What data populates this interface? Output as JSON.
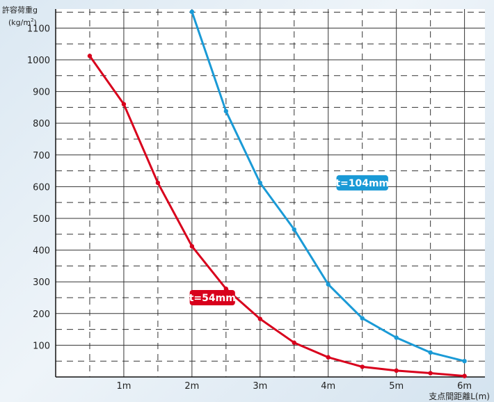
{
  "chart_data": {
    "type": "line",
    "ytitle_line1": "許容荷重g",
    "ytitle_line2": "(kg/m",
    "ytitle_sup": "2",
    "ytitle_close": ")",
    "xlabel": "支点間距離L(m)",
    "xlim": [
      0,
      6.3
    ],
    "ylim": [
      0,
      1160
    ],
    "x_ticks": [
      {
        "value": 1,
        "label": "1m"
      },
      {
        "value": 2,
        "label": "2m"
      },
      {
        "value": 3,
        "label": "3m"
      },
      {
        "value": 4,
        "label": "4m"
      },
      {
        "value": 5,
        "label": "5m"
      },
      {
        "value": 6,
        "label": "6m"
      }
    ],
    "y_ticks": [
      100,
      200,
      300,
      400,
      500,
      600,
      700,
      800,
      900,
      1000,
      1100
    ],
    "grid": true,
    "series": [
      {
        "name": "t=54mm",
        "color": "#d8001c",
        "x": [
          0.5,
          1.0,
          1.5,
          2.0,
          2.5,
          3.0,
          3.5,
          4.0,
          4.5,
          5.0,
          5.5,
          6.0
        ],
        "y": [
          1012,
          860,
          612,
          412,
          278,
          183,
          108,
          62,
          32,
          20,
          12,
          3
        ]
      },
      {
        "name": "t=104mm",
        "color": "#1a9ad6",
        "x": [
          2.0,
          2.5,
          3.0,
          3.5,
          4.0,
          4.5,
          5.0,
          5.5,
          6.0
        ],
        "y": [
          1170,
          838,
          612,
          465,
          292,
          185,
          124,
          77,
          50
        ]
      }
    ]
  }
}
